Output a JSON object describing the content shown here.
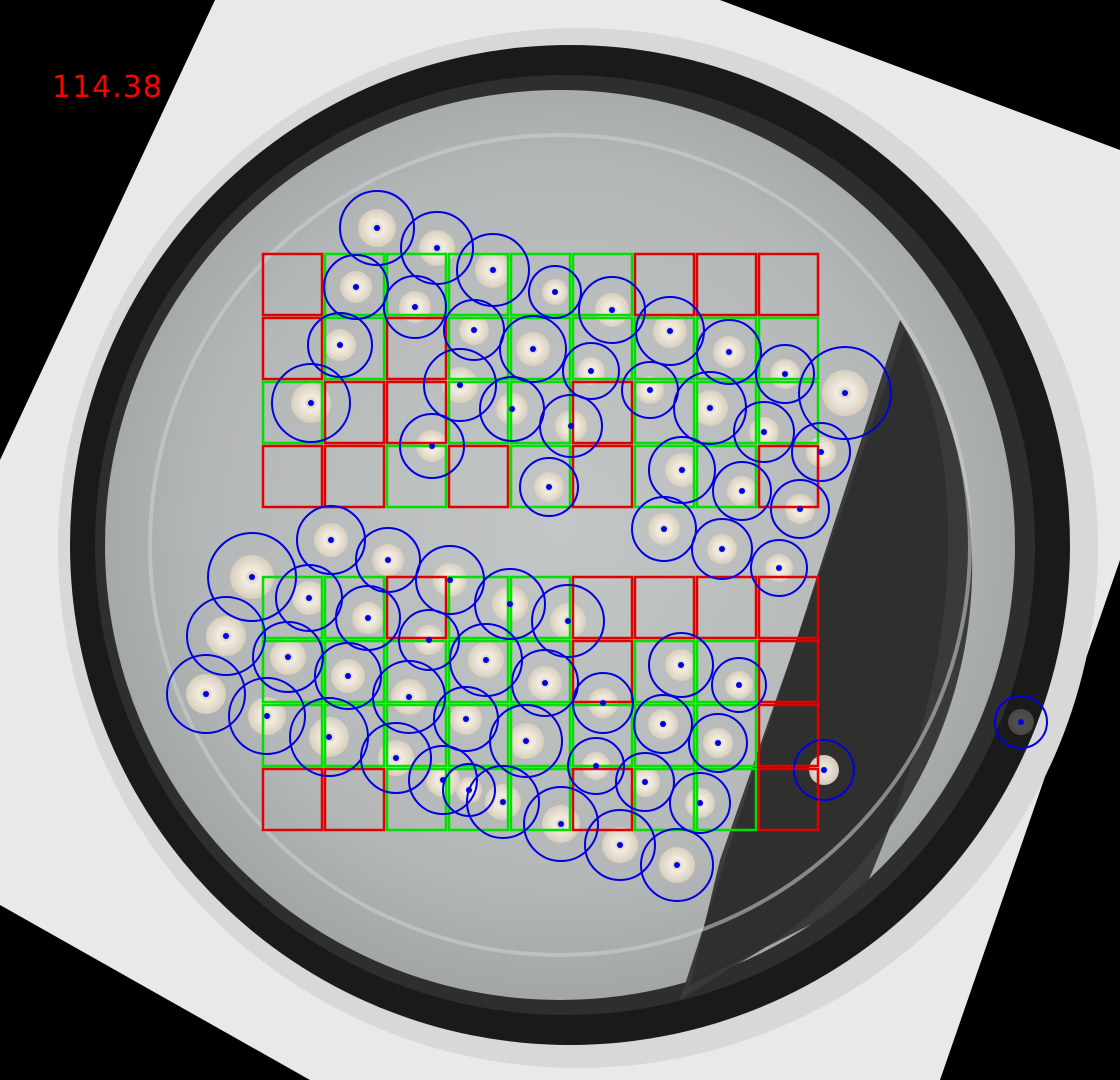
{
  "overlay": {
    "score_text": "114.38",
    "colors": {
      "background": "#000000",
      "score": "#ff0000",
      "cell_positive": "#00e000",
      "cell_negative": "#e00000",
      "colony_marker": "#0000e0",
      "agar": "#b9bcbc",
      "dish_rim": "#1c1c1c",
      "lid_plastic": "#e8e8e8",
      "colony": "#efe6d6"
    },
    "grids": [
      {
        "name": "upper-grid",
        "rows": 4,
        "cols": 9,
        "cells": [
          "neg",
          "pos",
          "pos",
          "pos",
          "pos",
          "pos",
          "neg",
          "neg",
          "neg",
          "neg",
          "pos",
          "neg",
          "pos",
          "pos",
          "pos",
          "pos",
          "pos",
          "pos",
          "pos",
          "neg",
          "neg",
          "pos",
          "pos",
          "neg",
          "pos",
          "pos",
          "pos",
          "neg",
          "neg",
          "pos",
          "neg",
          "pos",
          "neg",
          "pos",
          "pos",
          "neg"
        ]
      },
      {
        "name": "lower-grid",
        "rows": 4,
        "cols": 9,
        "cells": [
          "pos",
          "pos",
          "neg",
          "pos",
          "pos",
          "neg",
          "neg",
          "neg",
          "neg",
          "pos",
          "pos",
          "pos",
          "pos",
          "pos",
          "neg",
          "pos",
          "pos",
          "neg",
          "pos",
          "pos",
          "pos",
          "pos",
          "pos",
          "pos",
          "pos",
          "pos",
          "neg",
          "neg",
          "neg",
          "pos",
          "pos",
          "pos",
          "neg",
          "pos",
          "pos",
          "neg"
        ]
      }
    ],
    "colony_markers_count": 78
  }
}
